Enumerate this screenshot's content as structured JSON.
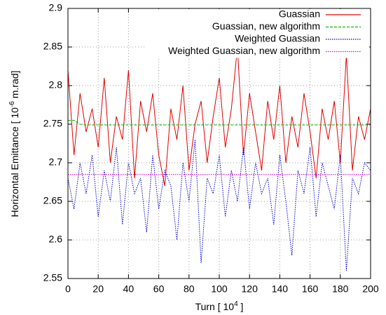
{
  "chart_data": {
    "type": "line",
    "x_label": {
      "text": "Turn [ 10",
      "sup": "4",
      "after": " ]"
    },
    "y_label": {
      "text": "Horizontal Emittance [ 10",
      "sup": "-6",
      "after": " m.rad]"
    },
    "x": [
      0,
      4,
      8,
      12,
      16,
      20,
      24,
      28,
      32,
      36,
      40,
      44,
      48,
      52,
      56,
      60,
      64,
      68,
      72,
      76,
      80,
      84,
      88,
      92,
      96,
      100,
      104,
      108,
      112,
      116,
      120,
      124,
      128,
      132,
      136,
      140,
      144,
      148,
      152,
      156,
      160,
      164,
      168,
      172,
      176,
      180,
      184,
      188,
      192,
      196,
      200
    ],
    "xlim": [
      0,
      200
    ],
    "xticks": [
      0,
      20,
      40,
      60,
      80,
      100,
      120,
      140,
      160,
      180,
      200
    ],
    "ylim": [
      2.55,
      2.9
    ],
    "yticks": [
      2.55,
      2.6,
      2.65,
      2.7,
      2.75,
      2.8,
      2.85,
      2.9
    ],
    "grid": true,
    "legend": "top-right",
    "series": [
      {
        "name": "Guassian",
        "color": "#e00000",
        "dash": "solid",
        "values": [
          2.82,
          2.71,
          2.79,
          2.74,
          2.77,
          2.72,
          2.81,
          2.7,
          2.76,
          2.73,
          2.82,
          2.68,
          2.78,
          2.74,
          2.79,
          2.71,
          2.67,
          2.77,
          2.73,
          2.8,
          2.69,
          2.75,
          2.78,
          2.7,
          2.76,
          2.81,
          2.72,
          2.77,
          2.85,
          2.71,
          2.79,
          2.74,
          2.69,
          2.78,
          2.73,
          2.8,
          2.7,
          2.76,
          2.72,
          2.79,
          2.74,
          2.68,
          2.77,
          2.73,
          2.78,
          2.7,
          2.84,
          2.69,
          2.76,
          2.73,
          2.77
        ]
      },
      {
        "name": "Guassian, new algorithm",
        "color": "#00c000",
        "dash": "dashed",
        "values": [
          2.755,
          2.755,
          2.75,
          2.749,
          2.749,
          2.749,
          2.749,
          2.749,
          2.749,
          2.749,
          2.749,
          2.749,
          2.749,
          2.749,
          2.749,
          2.749,
          2.749,
          2.749,
          2.749,
          2.749,
          2.749,
          2.749,
          2.749,
          2.749,
          2.749,
          2.749,
          2.749,
          2.749,
          2.749,
          2.749,
          2.749,
          2.749,
          2.749,
          2.749,
          2.749,
          2.749,
          2.749,
          2.749,
          2.749,
          2.749,
          2.749,
          2.749,
          2.749,
          2.749,
          2.749,
          2.749,
          2.749,
          2.749,
          2.749,
          2.749,
          2.749
        ]
      },
      {
        "name": "Weighted Guassian",
        "color": "#0000c0",
        "dash": "dotted",
        "values": [
          2.68,
          2.64,
          2.7,
          2.66,
          2.71,
          2.63,
          2.69,
          2.65,
          2.72,
          2.62,
          2.7,
          2.66,
          2.68,
          2.61,
          2.71,
          2.64,
          2.69,
          2.67,
          2.6,
          2.7,
          2.65,
          2.73,
          2.57,
          2.68,
          2.66,
          2.71,
          2.63,
          2.69,
          2.65,
          2.72,
          2.64,
          2.7,
          2.66,
          2.68,
          2.62,
          2.71,
          2.65,
          2.58,
          2.69,
          2.66,
          2.72,
          2.63,
          2.7,
          2.67,
          2.64,
          2.71,
          2.56,
          2.68,
          2.66,
          2.7,
          2.69
        ]
      },
      {
        "name": "Weighted Guassian, new algorithm",
        "color": "#e000e0",
        "dash": "dotted",
        "values": [
          2.685,
          2.685,
          2.685,
          2.685,
          2.685,
          2.685,
          2.685,
          2.685,
          2.685,
          2.685,
          2.685,
          2.685,
          2.685,
          2.685,
          2.685,
          2.685,
          2.685,
          2.685,
          2.685,
          2.685,
          2.685,
          2.685,
          2.685,
          2.685,
          2.685,
          2.685,
          2.685,
          2.685,
          2.685,
          2.685,
          2.685,
          2.685,
          2.685,
          2.685,
          2.685,
          2.685,
          2.685,
          2.685,
          2.685,
          2.685,
          2.685,
          2.685,
          2.685,
          2.685,
          2.685,
          2.685,
          2.685,
          2.685,
          2.685,
          2.685,
          2.685
        ]
      }
    ]
  }
}
